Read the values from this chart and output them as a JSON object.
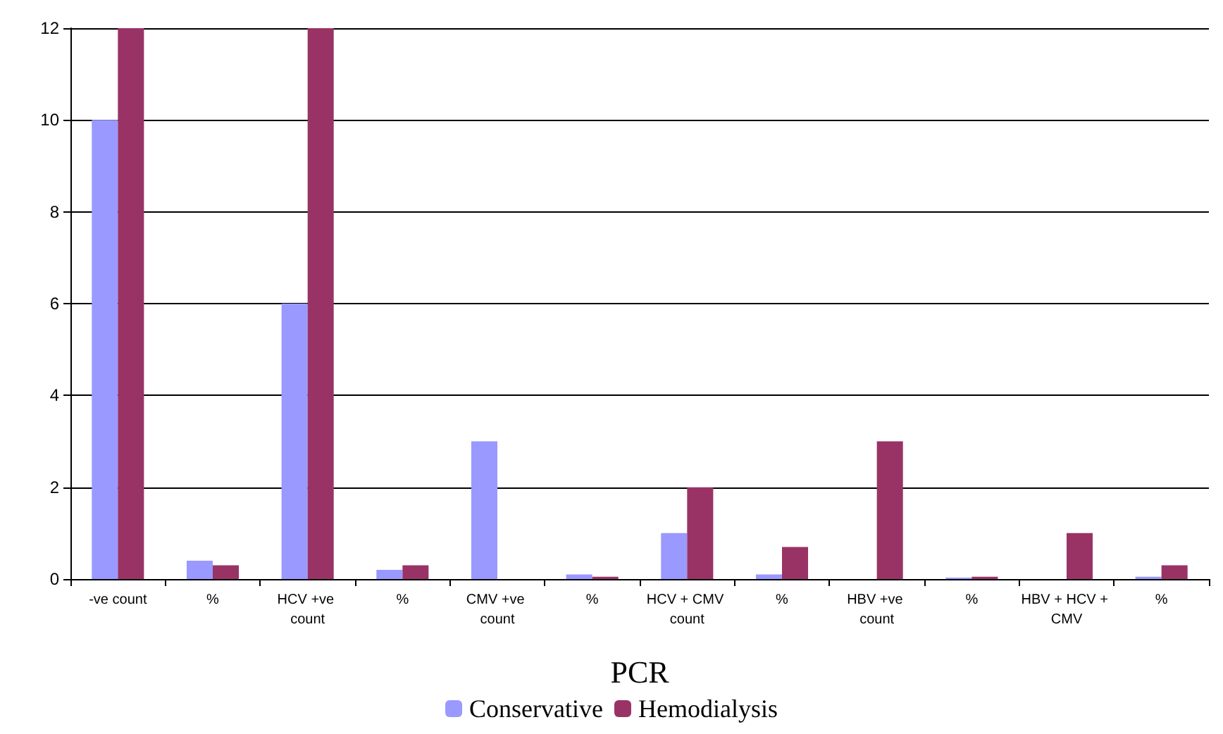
{
  "chart_data": {
    "type": "bar",
    "xlabel": "PCR",
    "categories": [
      "-ve count",
      "%",
      "HCV +ve count",
      "%",
      "CMV +ve count",
      "%",
      "HCV + CMV count",
      "%",
      "HBV +ve count",
      "%",
      "HBV + HCV + CMV",
      "%"
    ],
    "series": [
      {
        "name": "Conservative",
        "color": "#9999ff",
        "values": [
          10,
          0.4,
          6,
          0.2,
          3,
          0.1,
          1,
          0.1,
          0,
          0.03,
          0,
          0.05
        ]
      },
      {
        "name": "Hemodialysis",
        "color": "#993366",
        "values": [
          12,
          0.3,
          12,
          0.3,
          0,
          0.05,
          2,
          0.7,
          3,
          0.05,
          1,
          0.3
        ]
      }
    ],
    "ylim": [
      0,
      12
    ],
    "yticks": [
      0,
      2,
      4,
      6,
      8,
      10,
      12
    ],
    "grid": "y",
    "legend": "bottom"
  }
}
